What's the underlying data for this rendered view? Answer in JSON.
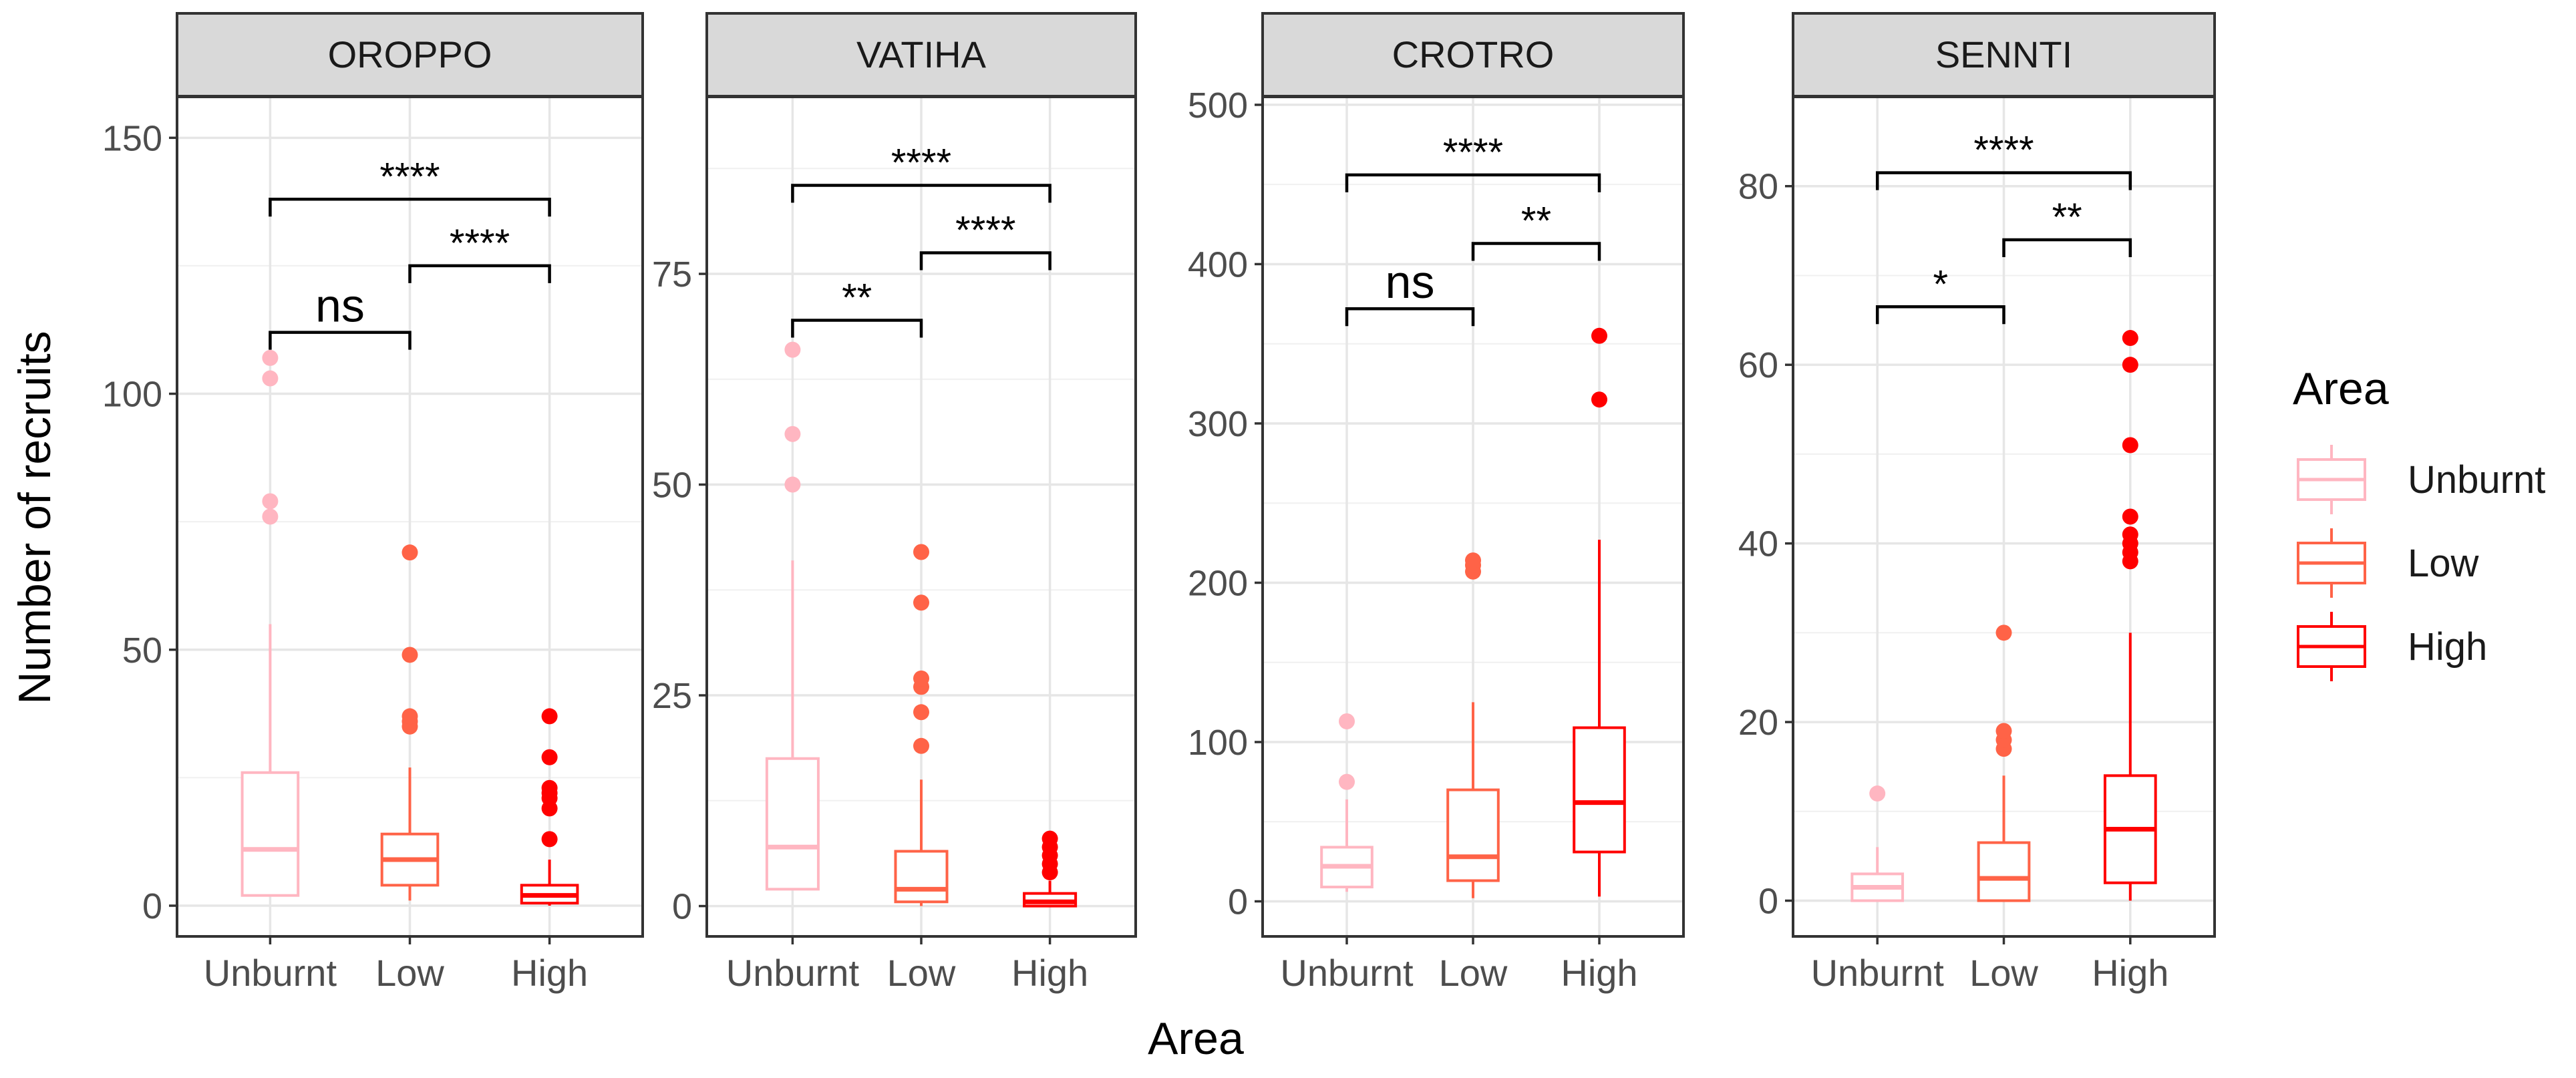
{
  "chart_data": {
    "type": "boxplot",
    "xlabel": "Area",
    "ylabel": "Number of recruits",
    "categories": [
      "Unburnt",
      "Low",
      "High"
    ],
    "colors": {
      "Unburnt": "#FFB6C1",
      "Low": "#FF6347",
      "High": "#FF0000"
    },
    "legend": {
      "title": "Area",
      "position": "right",
      "entries": [
        {
          "label": "Unburnt",
          "color": "#FFB6C1"
        },
        {
          "label": "Low",
          "color": "#FF6347"
        },
        {
          "label": "High",
          "color": "#FF0000"
        }
      ]
    },
    "panels": [
      {
        "title": "OROPPO",
        "ylim": [
          -6,
          158
        ],
        "yticks": [
          0,
          50,
          100,
          150
        ],
        "minor_yticks": [
          25,
          75,
          125
        ],
        "boxes": [
          {
            "group": "Unburnt",
            "min": 2,
            "q1": 2,
            "median": 11,
            "q3": 26,
            "max": 55,
            "outliers": [
              76,
              79,
              103,
              107
            ]
          },
          {
            "group": "Low",
            "min": 1,
            "q1": 4,
            "median": 9,
            "q3": 14,
            "max": 27,
            "outliers": [
              35,
              36,
              37,
              49,
              69
            ]
          },
          {
            "group": "High",
            "min": 0,
            "q1": 0.5,
            "median": 2,
            "q3": 4,
            "max": 9,
            "outliers": [
              13,
              19,
              21,
              22,
              23,
              29,
              37
            ]
          }
        ],
        "significance": [
          {
            "from": "Unburnt",
            "to": "Low",
            "label": "ns",
            "y": 112
          },
          {
            "from": "Low",
            "to": "High",
            "label": "****",
            "y": 125
          },
          {
            "from": "Unburnt",
            "to": "High",
            "label": "****",
            "y": 138
          }
        ]
      },
      {
        "title": "VATIHA",
        "ylim": [
          -3.6,
          96
        ],
        "yticks": [
          0,
          25,
          50,
          75
        ],
        "minor_yticks": [
          12.5,
          37.5,
          62.5,
          87.5
        ],
        "boxes": [
          {
            "group": "Unburnt",
            "min": 2,
            "q1": 2,
            "median": 7,
            "q3": 17.5,
            "max": 41,
            "outliers": [
              50,
              56,
              66
            ]
          },
          {
            "group": "Low",
            "min": 0,
            "q1": 0.5,
            "median": 2,
            "q3": 6.5,
            "max": 15,
            "outliers": [
              19,
              23,
              26,
              27,
              36,
              42
            ]
          },
          {
            "group": "High",
            "min": 0,
            "q1": 0,
            "median": 0.5,
            "q3": 1.5,
            "max": 3,
            "outliers": [
              4,
              5,
              6,
              7,
              8
            ]
          }
        ],
        "significance": [
          {
            "from": "Unburnt",
            "to": "Low",
            "label": "**",
            "y": 69.5
          },
          {
            "from": "Low",
            "to": "High",
            "label": "****",
            "y": 77.5
          },
          {
            "from": "Unburnt",
            "to": "High",
            "label": "****",
            "y": 85.5
          }
        ]
      },
      {
        "title": "CROTRO",
        "ylim": [
          -22,
          505
        ],
        "yticks": [
          0,
          100,
          200,
          300,
          400,
          500
        ],
        "minor_yticks": [
          50,
          150,
          250,
          350,
          450
        ],
        "boxes": [
          {
            "group": "Unburnt",
            "min": 6,
            "q1": 9,
            "median": 22,
            "q3": 34,
            "max": 64,
            "outliers": [
              75,
              113
            ]
          },
          {
            "group": "Low",
            "min": 2,
            "q1": 13,
            "median": 28,
            "q3": 70,
            "max": 125,
            "outliers": [
              207,
              211,
              214
            ]
          },
          {
            "group": "High",
            "min": 3,
            "q1": 31,
            "median": 62,
            "q3": 109,
            "max": 227,
            "outliers": [
              315,
              355
            ]
          }
        ],
        "significance": [
          {
            "from": "Unburnt",
            "to": "Low",
            "label": "ns",
            "y": 372
          },
          {
            "from": "Low",
            "to": "High",
            "label": "**",
            "y": 413
          },
          {
            "from": "Unburnt",
            "to": "High",
            "label": "****",
            "y": 456
          }
        ]
      },
      {
        "title": "SENNTI",
        "ylim": [
          -4,
          90
        ],
        "yticks": [
          0,
          20,
          40,
          60,
          80
        ],
        "minor_yticks": [
          10,
          30,
          50,
          70,
          90
        ],
        "boxes": [
          {
            "group": "Unburnt",
            "min": 0,
            "q1": 0,
            "median": 1.5,
            "q3": 3,
            "max": 6,
            "outliers": [
              12
            ]
          },
          {
            "group": "Low",
            "min": 0,
            "q1": 0,
            "median": 2.5,
            "q3": 6.5,
            "max": 14,
            "outliers": [
              17,
              18,
              19,
              30
            ]
          },
          {
            "group": "High",
            "min": 0,
            "q1": 2,
            "median": 8,
            "q3": 14,
            "max": 30,
            "outliers": [
              38,
              39,
              40,
              41,
              43,
              51,
              60,
              63
            ]
          }
        ],
        "significance": [
          {
            "from": "Unburnt",
            "to": "Low",
            "label": "*",
            "y": 66.5
          },
          {
            "from": "Low",
            "to": "High",
            "label": "**",
            "y": 74
          },
          {
            "from": "Unburnt",
            "to": "High",
            "label": "****",
            "y": 81.5
          }
        ]
      }
    ]
  }
}
